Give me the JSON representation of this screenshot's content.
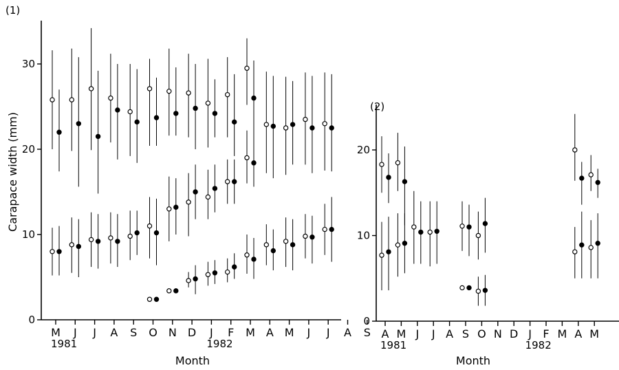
{
  "chart_data": [
    {
      "type": "scatter",
      "panel_label": "(1)",
      "ylabel": "Carapace width  (mm)",
      "xlabel": "Month",
      "ylim": [
        0,
        35
      ],
      "yticks": [
        0,
        10,
        20,
        30
      ],
      "x_ticks": [
        "M",
        "J",
        "J",
        "A",
        "S",
        "O",
        "N",
        "D",
        "J",
        "F",
        "M",
        "A",
        "M",
        "J",
        "J",
        "A",
        "S"
      ],
      "year_labels": [
        {
          "index": 0,
          "label": "1981"
        },
        {
          "index": 8,
          "label": "1982"
        }
      ],
      "series": [
        {
          "marker": "open",
          "points": [
            {
              "x": 0.0,
              "y": 25.8,
              "lo": 20.0,
              "hi": 31.6
            },
            {
              "x": 1.0,
              "y": 25.8,
              "lo": 19.8,
              "hi": 31.8
            },
            {
              "x": 2.0,
              "y": 27.1,
              "lo": 19.9,
              "hi": 34.2
            },
            {
              "x": 3.0,
              "y": 26.0,
              "lo": 20.8,
              "hi": 31.2
            },
            {
              "x": 4.0,
              "y": 24.4,
              "lo": 19.2,
              "hi": 30.0
            },
            {
              "x": 5.0,
              "y": 27.1,
              "lo": 20.4,
              "hi": 30.6
            },
            {
              "x": 6.0,
              "y": 26.8,
              "lo": 21.6,
              "hi": 31.8
            },
            {
              "x": 7.0,
              "y": 26.6,
              "lo": 21.4,
              "hi": 31.2
            },
            {
              "x": 8.0,
              "y": 25.4,
              "lo": 20.2,
              "hi": 30.6
            },
            {
              "x": 9.0,
              "y": 26.4,
              "lo": 21.4,
              "hi": 30.8
            },
            {
              "x": 10.0,
              "y": 29.5,
              "lo": 25.2,
              "hi": 33.0
            },
            {
              "x": 11.0,
              "y": 22.9,
              "lo": 17.2,
              "hi": 29.1
            },
            {
              "x": 12.0,
              "y": 22.5,
              "lo": 17.0,
              "hi": 28.5
            },
            {
              "x": 13.0,
              "y": 23.5,
              "lo": 18.2,
              "hi": 29.0
            },
            {
              "x": 14.0,
              "y": 23.0,
              "lo": 17.5,
              "hi": 29.0
            },
            {
              "x": 0.0,
              "y": 8.0,
              "lo": 5.2,
              "hi": 10.8
            },
            {
              "x": 1.0,
              "y": 8.8,
              "lo": 5.5,
              "hi": 12.0
            },
            {
              "x": 2.0,
              "y": 9.4,
              "lo": 6.2,
              "hi": 12.6
            },
            {
              "x": 3.0,
              "y": 9.6,
              "lo": 6.6,
              "hi": 12.6
            },
            {
              "x": 4.0,
              "y": 9.8,
              "lo": 7.0,
              "hi": 12.8
            },
            {
              "x": 5.0,
              "y": 11.0,
              "lo": 7.2,
              "hi": 14.4
            },
            {
              "x": 5.0,
              "y": 2.4
            },
            {
              "x": 6.0,
              "y": 13.0,
              "lo": 9.2,
              "hi": 16.8
            },
            {
              "x": 6.0,
              "y": 3.4
            },
            {
              "x": 7.0,
              "y": 13.8,
              "lo": 9.8,
              "hi": 17.2
            },
            {
              "x": 7.0,
              "y": 4.6,
              "lo": 3.8,
              "hi": 5.6
            },
            {
              "x": 8.0,
              "y": 14.4,
              "lo": 11.8,
              "hi": 17.6
            },
            {
              "x": 8.0,
              "y": 5.3,
              "lo": 4.0,
              "hi": 6.8
            },
            {
              "x": 9.0,
              "y": 16.2,
              "lo": 13.6,
              "hi": 18.8
            },
            {
              "x": 9.0,
              "y": 5.6,
              "lo": 4.4,
              "hi": 7.2
            },
            {
              "x": 10.0,
              "y": 19.0,
              "lo": 16.0,
              "hi": 22.2
            },
            {
              "x": 10.0,
              "y": 7.6,
              "lo": 5.4,
              "hi": 10.0
            },
            {
              "x": 11.0,
              "y": 8.8,
              "lo": 6.4,
              "hi": 11.2
            },
            {
              "x": 12.0,
              "y": 9.2,
              "lo": 6.2,
              "hi": 12.0
            },
            {
              "x": 13.0,
              "y": 9.8,
              "lo": 7.2,
              "hi": 12.4
            },
            {
              "x": 14.0,
              "y": 10.6,
              "lo": 7.6,
              "hi": 13.6
            }
          ]
        },
        {
          "marker": "filled",
          "points": [
            {
              "x": 0.0,
              "y": 22.0,
              "lo": 17.4,
              "hi": 27.0
            },
            {
              "x": 1.0,
              "y": 23.0,
              "lo": 15.6,
              "hi": 30.8
            },
            {
              "x": 2.0,
              "y": 21.5,
              "lo": 14.8,
              "hi": 29.2
            },
            {
              "x": 3.0,
              "y": 24.6,
              "lo": 18.8,
              "hi": 30.0
            },
            {
              "x": 4.0,
              "y": 23.2,
              "lo": 18.4,
              "hi": 29.4
            },
            {
              "x": 5.0,
              "y": 23.7,
              "lo": 20.4,
              "hi": 28.4
            },
            {
              "x": 6.0,
              "y": 24.2,
              "lo": 21.6,
              "hi": 29.6
            },
            {
              "x": 7.0,
              "y": 24.8,
              "lo": 20.0,
              "hi": 30.0
            },
            {
              "x": 8.0,
              "y": 24.2,
              "lo": 21.4,
              "hi": 28.2
            },
            {
              "x": 9.0,
              "y": 23.2,
              "lo": 19.2,
              "hi": 28.8
            },
            {
              "x": 10.0,
              "y": 26.0,
              "lo": 20.2,
              "hi": 30.4
            },
            {
              "x": 11.0,
              "y": 22.7,
              "lo": 16.6,
              "hi": 28.6
            },
            {
              "x": 12.0,
              "y": 22.9,
              "lo": 18.2,
              "hi": 28.0
            },
            {
              "x": 13.0,
              "y": 22.5,
              "lo": 17.2,
              "hi": 28.6
            },
            {
              "x": 14.0,
              "y": 22.5,
              "lo": 17.4,
              "hi": 28.8
            },
            {
              "x": 0.0,
              "y": 8.0,
              "lo": 5.2,
              "hi": 11.0
            },
            {
              "x": 1.0,
              "y": 8.6,
              "lo": 5.0,
              "hi": 11.8
            },
            {
              "x": 2.0,
              "y": 9.2,
              "lo": 6.0,
              "hi": 12.4
            },
            {
              "x": 3.0,
              "y": 9.2,
              "lo": 6.2,
              "hi": 12.4
            },
            {
              "x": 4.0,
              "y": 10.2,
              "lo": 7.6,
              "hi": 12.8
            },
            {
              "x": 5.0,
              "y": 10.2,
              "lo": 6.4,
              "hi": 14.2
            },
            {
              "x": 5.0,
              "y": 2.4
            },
            {
              "x": 6.0,
              "y": 13.2,
              "lo": 10.0,
              "hi": 16.6
            },
            {
              "x": 6.0,
              "y": 3.4
            },
            {
              "x": 7.0,
              "y": 15.0,
              "lo": 11.8,
              "hi": 18.2
            },
            {
              "x": 7.0,
              "y": 4.8,
              "lo": 3.0,
              "hi": 6.4
            },
            {
              "x": 8.0,
              "y": 15.4,
              "lo": 12.6,
              "hi": 18.2
            },
            {
              "x": 8.0,
              "y": 5.5,
              "lo": 4.2,
              "hi": 7.0
            },
            {
              "x": 9.0,
              "y": 16.2,
              "lo": 13.6,
              "hi": 18.8
            },
            {
              "x": 9.0,
              "y": 6.2,
              "lo": 4.8,
              "hi": 7.8
            },
            {
              "x": 10.0,
              "y": 18.4,
              "lo": 15.6,
              "hi": 21.6
            },
            {
              "x": 10.0,
              "y": 7.1,
              "lo": 4.8,
              "hi": 9.6
            },
            {
              "x": 11.0,
              "y": 8.1,
              "lo": 5.8,
              "hi": 10.6
            },
            {
              "x": 12.0,
              "y": 8.8,
              "lo": 5.8,
              "hi": 11.8
            },
            {
              "x": 13.0,
              "y": 9.7,
              "lo": 6.6,
              "hi": 12.2
            },
            {
              "x": 14.0,
              "y": 10.6,
              "lo": 6.8,
              "hi": 14.4
            }
          ]
        }
      ]
    },
    {
      "type": "scatter",
      "panel_label": "(2)",
      "ylabel": "",
      "xlabel": "Month",
      "ylim": [
        0,
        25
      ],
      "yticks": [
        0,
        10,
        20
      ],
      "x_ticks": [
        "A",
        "M",
        "J",
        "J",
        "A",
        "S",
        "O",
        "N",
        "D",
        "J",
        "F",
        "M",
        "A",
        "M"
      ],
      "year_labels": [
        {
          "index": 0,
          "label": "1981"
        },
        {
          "index": 9,
          "label": "1982"
        }
      ],
      "series": [
        {
          "marker": "open",
          "points": [
            {
              "x": 0.0,
              "y": 18.3,
              "lo": 15.0,
              "hi": 21.6
            },
            {
              "x": 1.0,
              "y": 18.5,
              "lo": 15.2,
              "hi": 22.0
            },
            {
              "x": 0.0,
              "y": 7.7,
              "lo": 3.6,
              "hi": 11.6
            },
            {
              "x": 1.0,
              "y": 8.9,
              "lo": 5.2,
              "hi": 12.6
            },
            {
              "x": 2.0,
              "y": 11.0,
              "lo": 6.7,
              "hi": 15.2
            },
            {
              "x": 3.0,
              "y": 10.4,
              "lo": 6.4,
              "hi": 14.0
            },
            {
              "x": 5.0,
              "y": 11.1,
              "lo": 8.2,
              "hi": 14.0
            },
            {
              "x": 5.0,
              "y": 3.9
            },
            {
              "x": 6.0,
              "y": 10.0,
              "lo": 7.2,
              "hi": 12.8
            },
            {
              "x": 6.0,
              "y": 3.5,
              "lo": 1.8,
              "hi": 5.2
            },
            {
              "x": 12.0,
              "y": 20.0,
              "lo": 16.4,
              "hi": 24.2
            },
            {
              "x": 13.0,
              "y": 17.1,
              "lo": 15.2,
              "hi": 19.4
            },
            {
              "x": 12.0,
              "y": 8.1,
              "lo": 5.0,
              "hi": 11.0
            },
            {
              "x": 13.0,
              "y": 8.6,
              "lo": 5.0,
              "hi": 11.8
            }
          ]
        },
        {
          "marker": "filled",
          "points": [
            {
              "x": 0.0,
              "y": 16.8,
              "lo": 13.8,
              "hi": 19.6
            },
            {
              "x": 1.0,
              "y": 16.3,
              "lo": 11.2,
              "hi": 20.4
            },
            {
              "x": 0.0,
              "y": 8.1,
              "lo": 3.6,
              "hi": 12.2
            },
            {
              "x": 1.0,
              "y": 9.1,
              "lo": 5.6,
              "hi": 12.6
            },
            {
              "x": 2.0,
              "y": 10.4,
              "lo": 6.7,
              "hi": 14.0
            },
            {
              "x": 3.0,
              "y": 10.5,
              "lo": 6.7,
              "hi": 14.0
            },
            {
              "x": 5.0,
              "y": 11.0,
              "lo": 7.6,
              "hi": 13.6
            },
            {
              "x": 5.0,
              "y": 3.9
            },
            {
              "x": 6.0,
              "y": 11.4,
              "lo": 8.0,
              "hi": 14.4
            },
            {
              "x": 6.0,
              "y": 3.6,
              "lo": 1.8,
              "hi": 5.4
            },
            {
              "x": 12.0,
              "y": 16.7,
              "lo": 13.6,
              "hi": 18.6
            },
            {
              "x": 13.0,
              "y": 16.2,
              "lo": 14.4,
              "hi": 17.8
            },
            {
              "x": 12.0,
              "y": 8.9,
              "lo": 5.0,
              "hi": 12.8
            },
            {
              "x": 13.0,
              "y": 9.1,
              "lo": 5.0,
              "hi": 12.6
            }
          ]
        }
      ]
    }
  ]
}
